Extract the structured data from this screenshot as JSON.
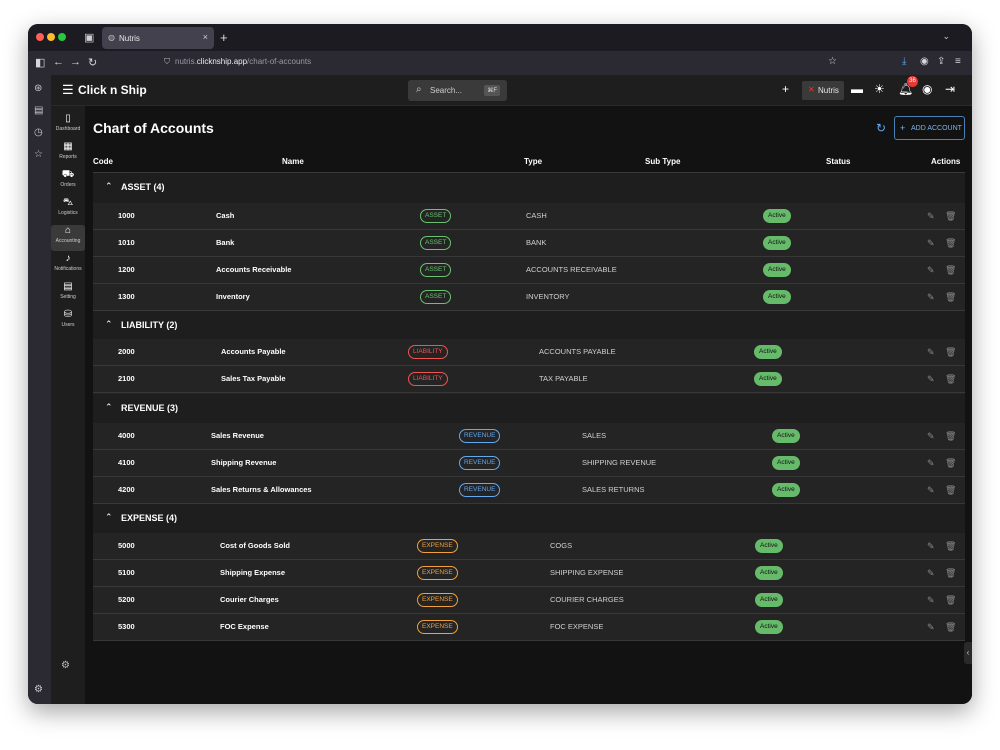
{
  "browser": {
    "tab_title": "Nutris",
    "tab_close": "×",
    "new_tab": "+",
    "url_subdomain": "nutris.",
    "url_host": "clicknship.app",
    "url_path": "/chart-of-accounts"
  },
  "app": {
    "brand": "Click n Ship",
    "search_placeholder": "Search...",
    "search_shortcut": "⌘F",
    "tenant": "Nutris",
    "notification_count": "36"
  },
  "sidebar": {
    "items": [
      {
        "label": "Dashboard",
        "icon": "dashboard-icon"
      },
      {
        "label": "Reports",
        "icon": "reports-icon"
      },
      {
        "label": "Orders",
        "icon": "cart-icon"
      },
      {
        "label": "Logistics",
        "icon": "truck-icon"
      },
      {
        "label": "Accounting",
        "icon": "bank-icon"
      },
      {
        "label": "Notifications",
        "icon": "bell-icon"
      },
      {
        "label": "Setting",
        "icon": "settings-icon"
      },
      {
        "label": "Users",
        "icon": "users-icon"
      }
    ]
  },
  "page": {
    "title": "Chart of Accounts",
    "add_button": "ADD ACCOUNT",
    "columns": {
      "code": "Code",
      "name": "Name",
      "type": "Type",
      "sub_type": "Sub Type",
      "status": "Status",
      "actions": "Actions"
    },
    "groups": [
      {
        "title": "ASSET (4)",
        "rows": [
          {
            "code": "1000",
            "name": "Cash",
            "type": "ASSET",
            "sub_type": "CASH",
            "status": "Active"
          },
          {
            "code": "1010",
            "name": "Bank",
            "type": "ASSET",
            "sub_type": "BANK",
            "status": "Active"
          },
          {
            "code": "1200",
            "name": "Accounts Receivable",
            "type": "ASSET",
            "sub_type": "ACCOUNTS RECEIVABLE",
            "status": "Active"
          },
          {
            "code": "1300",
            "name": "Inventory",
            "type": "ASSET",
            "sub_type": "INVENTORY",
            "status": "Active"
          }
        ]
      },
      {
        "title": "LIABILITY (2)",
        "rows": [
          {
            "code": "2000",
            "name": "Accounts Payable",
            "type": "LIABILITY",
            "sub_type": "ACCOUNTS PAYABLE",
            "status": "Active"
          },
          {
            "code": "2100",
            "name": "Sales Tax Payable",
            "type": "LIABILITY",
            "sub_type": "TAX PAYABLE",
            "status": "Active"
          }
        ]
      },
      {
        "title": "REVENUE (3)",
        "rows": [
          {
            "code": "4000",
            "name": "Sales Revenue",
            "type": "REVENUE",
            "sub_type": "SALES",
            "status": "Active"
          },
          {
            "code": "4100",
            "name": "Shipping Revenue",
            "type": "REVENUE",
            "sub_type": "SHIPPING REVENUE",
            "status": "Active"
          },
          {
            "code": "4200",
            "name": "Sales Returns & Allowances",
            "type": "REVENUE",
            "sub_type": "SALES RETURNS",
            "status": "Active"
          }
        ]
      },
      {
        "title": "EXPENSE (4)",
        "rows": [
          {
            "code": "5000",
            "name": "Cost of Goods Sold",
            "type": "EXPENSE",
            "sub_type": "COGS",
            "status": "Active"
          },
          {
            "code": "5100",
            "name": "Shipping Expense",
            "type": "EXPENSE",
            "sub_type": "SHIPPING EXPENSE",
            "status": "Active"
          },
          {
            "code": "5200",
            "name": "Courier Charges",
            "type": "EXPENSE",
            "sub_type": "COURIER CHARGES",
            "status": "Active"
          },
          {
            "code": "5300",
            "name": "FOC Expense",
            "type": "EXPENSE",
            "sub_type": "FOC EXPENSE",
            "status": "Active"
          }
        ]
      }
    ]
  },
  "colors": {
    "asset": "#69c36e",
    "liability": "#ef5350",
    "revenue": "#64a8f0",
    "expense": "#f0a03c",
    "status_active": "#66bb6a"
  }
}
